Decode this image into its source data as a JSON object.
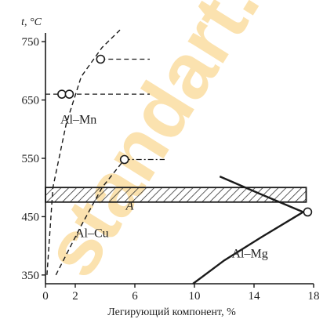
{
  "chart_data": {
    "type": "line",
    "ylabel": "t, °C",
    "xlabel": "Легирующий компонент, %",
    "xlim": [
      0,
      18
    ],
    "ylim": [
      335,
      765
    ],
    "x_ticks": [
      0,
      2,
      6,
      10,
      14,
      18
    ],
    "x_tick_labels": [
      "0",
      "2",
      "6",
      "10",
      "14",
      "18"
    ],
    "y_ticks": [
      350,
      450,
      550,
      650,
      750
    ],
    "y_tick_labels": [
      "350",
      "450",
      "550",
      "650",
      "750"
    ],
    "grid": false,
    "series": [
      {
        "name": "Al–Mn",
        "style": "dashed",
        "x": [
          0.1,
          0.5,
          1.4,
          2.4,
          3.8,
          5.0
        ],
        "y": [
          350,
          500,
          610,
          690,
          740,
          770
        ]
      },
      {
        "name": "Al–Cu",
        "style": "dashed",
        "x": [
          0.7,
          2.3,
          3.8,
          5.3
        ],
        "y": [
          350,
          430,
          500,
          548
        ]
      },
      {
        "name": "Al–Mg",
        "style": "solid",
        "x": [
          9.9,
          12,
          14.5,
          17.3
        ],
        "y": [
          335,
          375,
          415,
          458
        ]
      },
      {
        "name": "",
        "style": "solid",
        "x": [
          11.7,
          14.5,
          17.3
        ],
        "y": [
          519,
          488,
          458
        ]
      }
    ],
    "markers": [
      {
        "x": 3.7,
        "y": 720
      },
      {
        "x": 1.1,
        "y": 660
      },
      {
        "x": 1.6,
        "y": 660
      },
      {
        "x": 5.3,
        "y": 548
      },
      {
        "x": 17.6,
        "y": 458
      }
    ],
    "horizontal_lines": [
      {
        "y": 720,
        "x_from": 3.7,
        "x_to": 7.0,
        "style": "dashed"
      },
      {
        "y": 660,
        "x_from": 0,
        "x_to": 7.0,
        "style": "dashed"
      },
      {
        "y": 548,
        "x_from": 5.3,
        "x_to": 8.0,
        "style": "dashdot"
      }
    ],
    "band": {
      "y_from": 475,
      "y_to": 500,
      "x_from": 0,
      "x_to": 17.5,
      "fill": "hatched"
    },
    "region_labels": [
      {
        "text": "Al–Mn",
        "x": 1.0,
        "y": 610
      },
      {
        "text": "Al–Cu",
        "x": 2.0,
        "y": 415
      },
      {
        "text": "Al–Mg",
        "x": 12.5,
        "y": 380
      },
      {
        "text": "A",
        "x": 5.4,
        "y": 462
      }
    ]
  },
  "watermark": "standart.ru",
  "colors": {
    "curve": "#1a1a1a",
    "band_hatch": "#333333",
    "watermark": "#f6bf4d"
  }
}
